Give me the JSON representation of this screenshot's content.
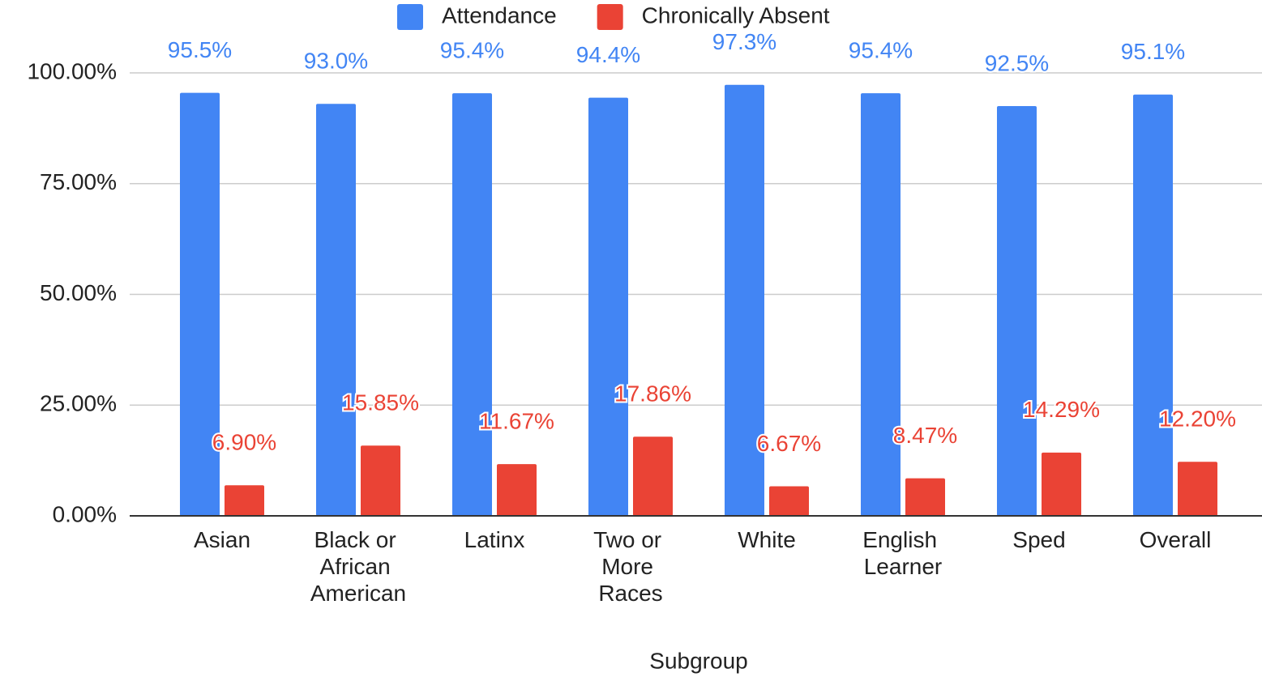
{
  "chart_data": {
    "type": "bar",
    "x_label": "Subgroup",
    "categories": [
      "Asian",
      "Black or African American",
      "Latinx",
      "Two or More Races",
      "White",
      "English Learner",
      "Sped",
      "Overall"
    ],
    "series": [
      {
        "name": "Attendance",
        "color": "#4285f4",
        "values": [
          95.5,
          93.0,
          95.4,
          94.4,
          97.3,
          95.4,
          92.5,
          95.1
        ],
        "value_labels": [
          "95.5%",
          "93.0%",
          "95.4%",
          "94.4%",
          "97.3%",
          "95.4%",
          "92.5%",
          "95.1%"
        ]
      },
      {
        "name": "Chronically Absent",
        "color": "#ea4335",
        "values": [
          6.9,
          15.85,
          11.67,
          17.86,
          6.67,
          8.47,
          14.29,
          12.2
        ],
        "value_labels": [
          "6.90%",
          "15.85%",
          "11.67%",
          "17.86%",
          "6.67%",
          "8.47%",
          "14.29%",
          "12.20%"
        ]
      }
    ],
    "ylim": [
      0,
      100
    ],
    "yticks": [
      {
        "value": 0,
        "label": "0.00%"
      },
      {
        "value": 25,
        "label": "25.00%"
      },
      {
        "value": 50,
        "label": "50.00%"
      },
      {
        "value": 75,
        "label": "75.00%"
      },
      {
        "value": 100,
        "label": "100.00%"
      }
    ],
    "grid": true,
    "legend": "top"
  }
}
